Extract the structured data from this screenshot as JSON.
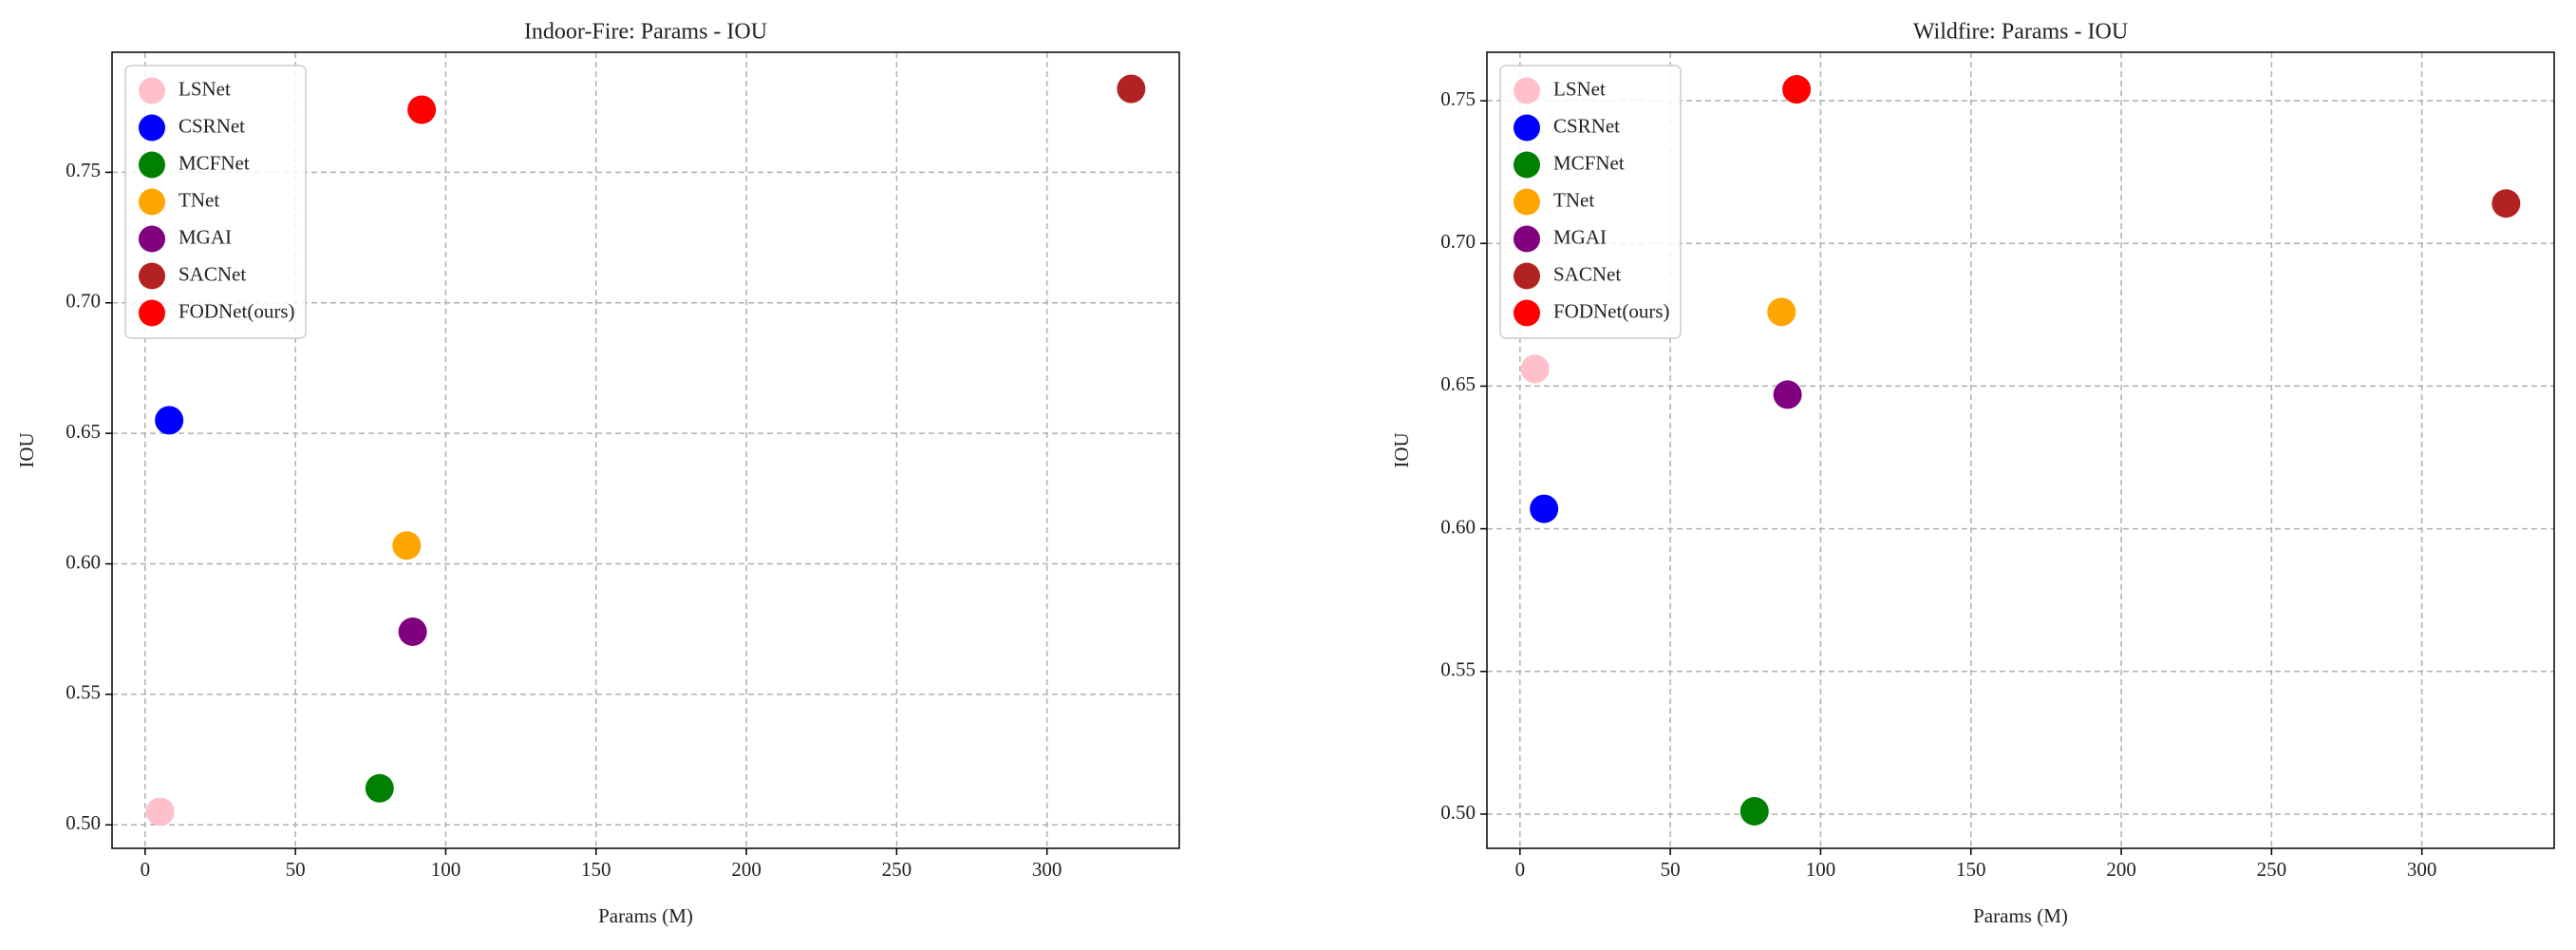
{
  "chart_data": [
    {
      "type": "scatter",
      "title": "Indoor-Fire: Params - IOU",
      "x_label": "Params (M)",
      "y_label": "IOU",
      "xlim": [
        -11,
        344
      ],
      "ylim": [
        0.491,
        0.796
      ],
      "xticks": [
        0,
        50,
        100,
        150,
        200,
        250,
        300
      ],
      "yticks": [
        {
          "value": 0.5,
          "label": "0.50"
        },
        0.55,
        {
          "value": 0.6,
          "label": "0.60"
        },
        0.65,
        {
          "value": 0.7,
          "label": "0.70"
        },
        0.75
      ],
      "grid": true,
      "legend": "upper left",
      "series": [
        {
          "name": "LSNet",
          "color": "#ffc0cb",
          "x": [
            5
          ],
          "values": [
            0.505
          ]
        },
        {
          "name": "CSRNet",
          "color": "#0000ff",
          "x": [
            8
          ],
          "values": [
            0.655
          ]
        },
        {
          "name": "MCFNet",
          "color": "#008000",
          "x": [
            78
          ],
          "values": [
            0.514
          ]
        },
        {
          "name": "TNet",
          "color": "#ffa500",
          "x": [
            87
          ],
          "values": [
            0.607
          ]
        },
        {
          "name": "MGAI",
          "color": "#800080",
          "x": [
            89
          ],
          "values": [
            0.574
          ]
        },
        {
          "name": "SACNet",
          "color": "#b22222",
          "x": [
            328
          ],
          "values": [
            0.782
          ]
        },
        {
          "name": "FODNet(ours)",
          "color": "#ff0000",
          "x": [
            92
          ],
          "values": [
            0.774
          ]
        }
      ]
    },
    {
      "type": "scatter",
      "title": "Wildfire: Params - IOU",
      "x_label": "Params (M)",
      "y_label": "IOU",
      "xlim": [
        -11,
        344
      ],
      "ylim": [
        0.488,
        0.767
      ],
      "xticks": [
        0,
        50,
        100,
        150,
        200,
        250,
        300
      ],
      "yticks": [
        {
          "value": 0.5,
          "label": "0.50"
        },
        0.55,
        {
          "value": 0.6,
          "label": "0.60"
        },
        0.65,
        {
          "value": 0.7,
          "label": "0.70"
        },
        0.75
      ],
      "grid": true,
      "legend": "upper left",
      "series": [
        {
          "name": "LSNet",
          "color": "#ffc0cb",
          "x": [
            5
          ],
          "values": [
            0.656
          ]
        },
        {
          "name": "CSRNet",
          "color": "#0000ff",
          "x": [
            8
          ],
          "values": [
            0.607
          ]
        },
        {
          "name": "MCFNet",
          "color": "#008000",
          "x": [
            78
          ],
          "values": [
            0.501
          ]
        },
        {
          "name": "TNet",
          "color": "#ffa500",
          "x": [
            87
          ],
          "values": [
            0.676
          ]
        },
        {
          "name": "MGAI",
          "color": "#800080",
          "x": [
            89
          ],
          "values": [
            0.647
          ]
        },
        {
          "name": "SACNet",
          "color": "#b22222",
          "x": [
            328
          ],
          "values": [
            0.714
          ]
        },
        {
          "name": "FODNet(ours)",
          "color": "#ff0000",
          "x": [
            92
          ],
          "values": [
            0.754
          ]
        }
      ]
    }
  ]
}
